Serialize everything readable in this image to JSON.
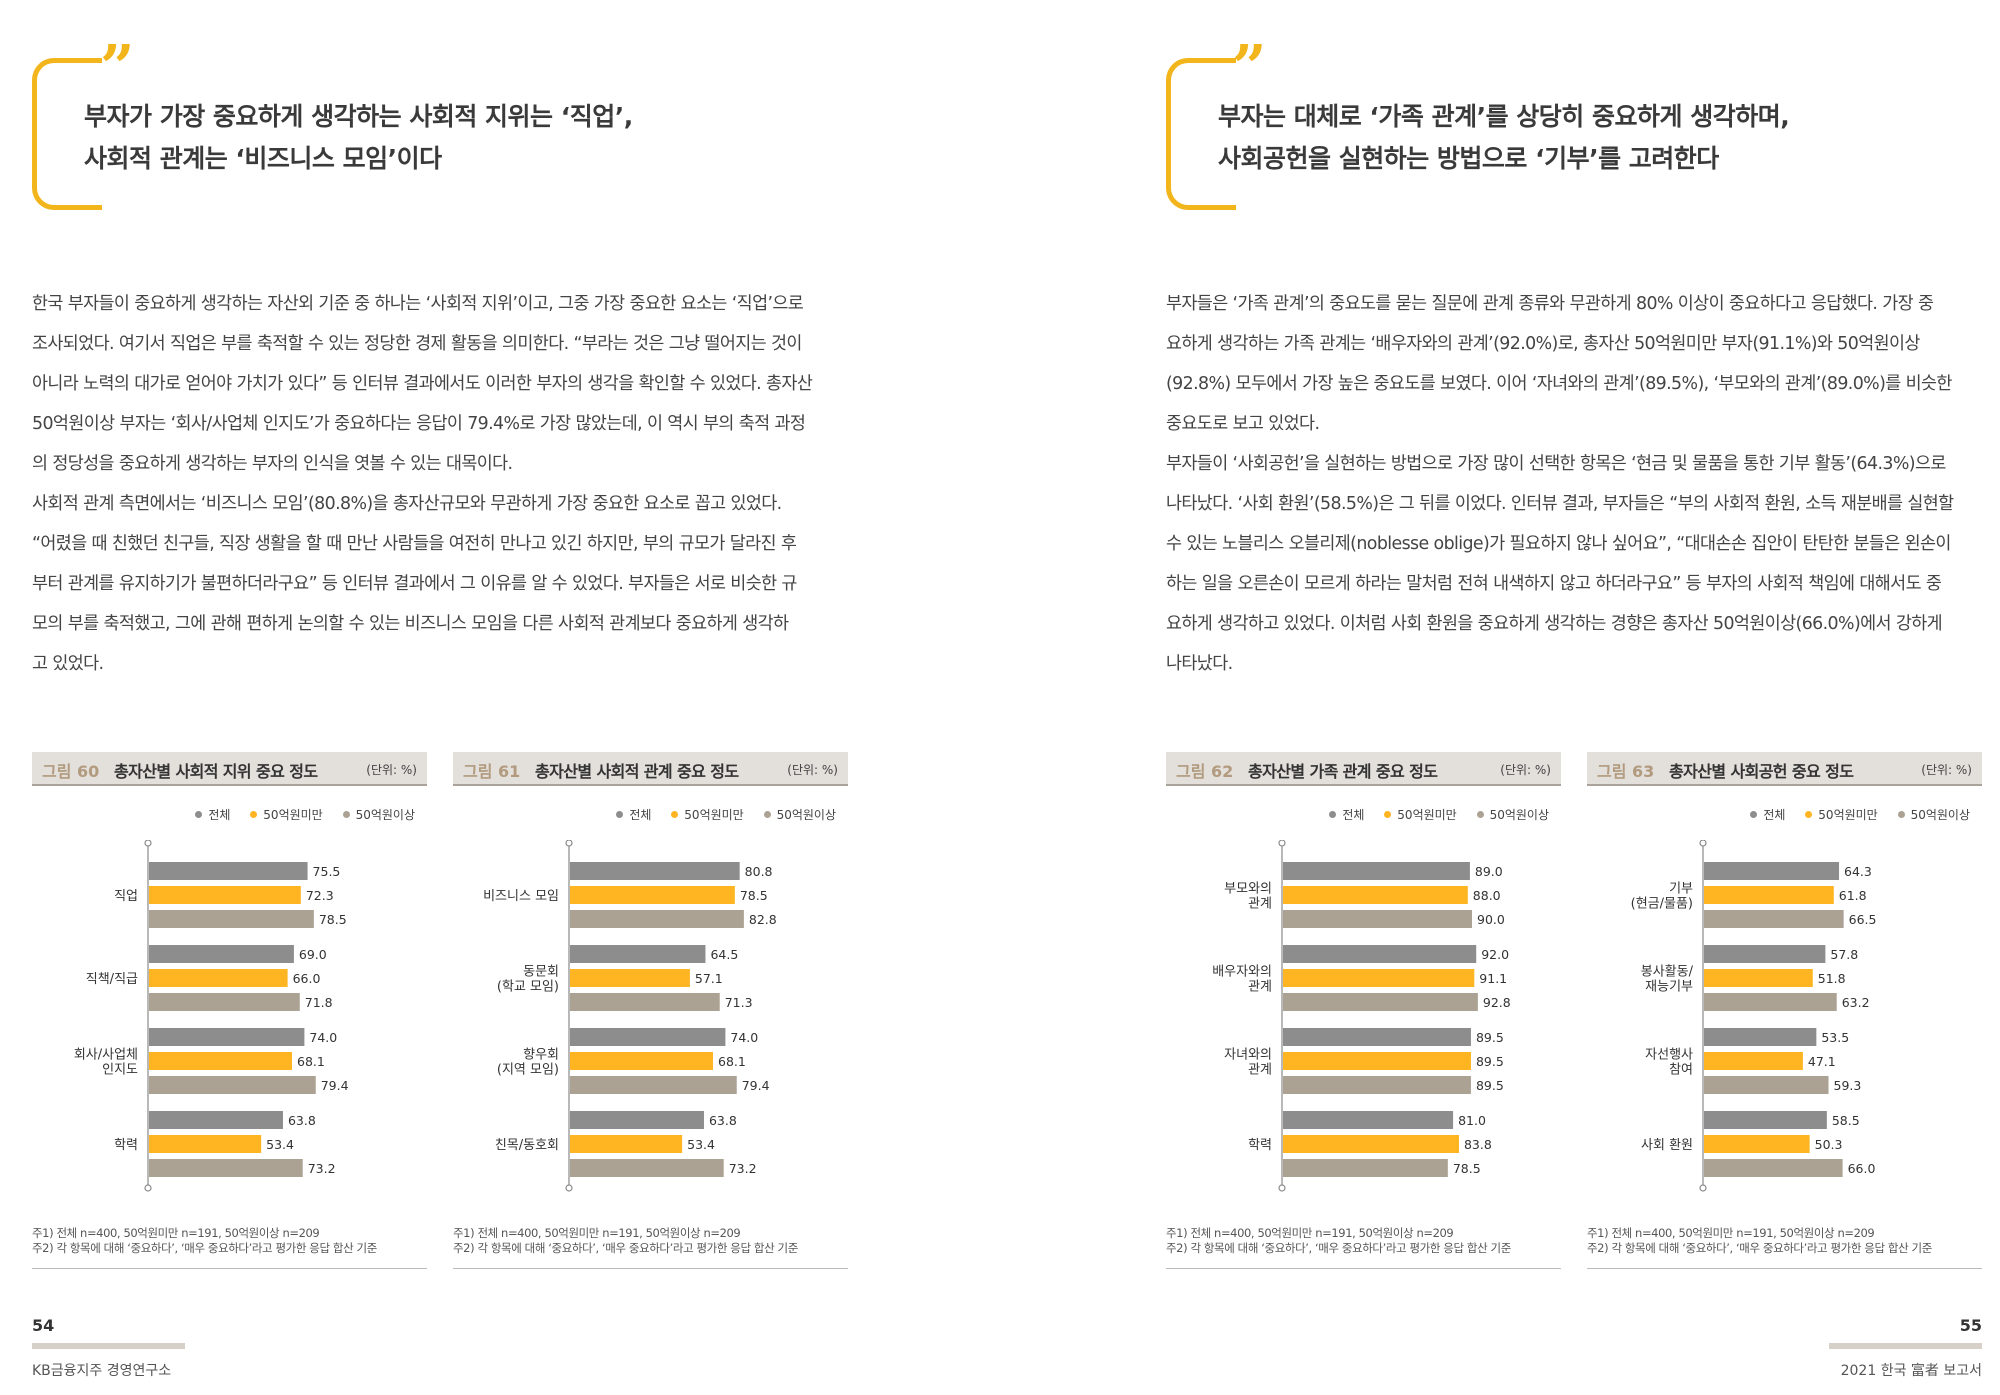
{
  "colors": {
    "total": "#8d8d8d",
    "under": "#ffb522",
    "over": "#aca294",
    "accent": "#f2b51c"
  },
  "left_page": {
    "quote_mark": "”",
    "headline": [
      "부자가 가장 중요하게 생각하는 사회적 지위는 ‘직업’,",
      "사회적 관계는 ‘비즈니스 모임’이다"
    ],
    "body_lines": [
      "한국 부자들이 중요하게 생각하는 자산외 기준 중 하나는 ‘사회적 지위’이고, 그중 가장 중요한 요소는 ‘직업’으로",
      "조사되었다. 여기서 직업은 부를 축적할 수 있는 정당한 경제 활동을 의미한다. “부라는 것은 그냥 떨어지는 것이",
      "아니라 노력의 대가로 얻어야 가치가 있다” 등 인터뷰 결과에서도 이러한 부자의 생각을 확인할 수 있었다. 총자산",
      "50억원이상 부자는 ‘회사/사업체 인지도’가 중요하다는 응답이 79.4%로 가장 많았는데, 이 역시 부의 축적 과정",
      "의 정당성을 중요하게 생각하는 부자의 인식을 엿볼 수 있는 대목이다.",
      "사회적 관계 측면에서는 ‘비즈니스 모임’(80.8%)을 총자산규모와 무관하게 가장 중요한 요소로 꼽고 있었다.",
      "“어렸을 때 친했던 친구들, 직장 생활을 할 때 만난 사람들을 여전히 만나고 있긴 하지만, 부의 규모가 달라진 후",
      "부터 관계를 유지하기가 불편하더라구요” 등 인터뷰 결과에서 그 이유를 알 수 있었다. 부자들은 서로 비슷한 규",
      "모의 부를 축적했고, 그에 관해 편하게 논의할 수 있는 비즈니스 모임을 다른 사회적 관계보다 중요하게 생각하",
      "고 있었다."
    ],
    "page_number": "54",
    "footer": "KB금융지주 경영연구소"
  },
  "right_page": {
    "quote_mark": "”",
    "headline": [
      "부자는 대체로 ‘가족 관계’를 상당히 중요하게 생각하며,",
      "사회공헌을 실현하는 방법으로 ‘기부’를 고려한다"
    ],
    "body_lines": [
      "부자들은 ‘가족 관계’의 중요도를 묻는 질문에 관계 종류와 무관하게 80% 이상이 중요하다고 응답했다. 가장 중",
      "요하게 생각하는 가족 관계는 ‘배우자와의 관계’(92.0%)로, 총자산 50억원미만 부자(91.1%)와 50억원이상",
      "(92.8%) 모두에서 가장 높은 중요도를 보였다. 이어 ‘자녀와의 관계’(89.5%), ‘부모와의 관계’(89.0%)를 비슷한",
      "중요도로 보고 있었다.",
      "부자들이 ‘사회공헌’을 실현하는 방법으로 가장 많이 선택한 항목은 ‘현금 및 물품을 통한 기부 활동’(64.3%)으로",
      "나타났다. ‘사회 환원’(58.5%)은 그 뒤를 이었다. 인터뷰 결과, 부자들은 “부의 사회적 환원, 소득 재분배를 실현할",
      "수 있는 노블리스 오블리제(noblesse oblige)가 필요하지 않나 싶어요”, “대대손손 집안이 탄탄한 분들은 왼손이",
      "하는 일을 오른손이 모르게 하라는 말처럼 전혀 내색하지 않고 하더라구요” 등 부자의 사회적 책임에 대해서도 중",
      "요하게 생각하고 있었다. 이처럼 사회 환원을 중요하게 생각하는 경향은 총자산 50억원이상(66.0%)에서 강하게",
      "나타났다."
    ],
    "page_number": "55",
    "footer": "2021 한국 富者 보고서"
  },
  "figures": [
    {
      "num": "그림 60",
      "title": "총자산별 사회적 지위 중요 정도",
      "unit": "(단위: %)",
      "legend": [
        "전체",
        "50억원미만",
        "50억원이상"
      ],
      "notes": [
        "주1) 전체 n=400, 50억원미만 n=191, 50억원이상 n=209",
        "주2) 각 항목에 대해 ‘중요하다’, ‘매우 중요하다’라고 평가한 응답 합산 기준"
      ],
      "chart_data": {
        "type": "bar",
        "orientation": "horizontal",
        "xlim": [
          0,
          100
        ],
        "categories": [
          [
            "직업"
          ],
          [
            "직책/직급"
          ],
          [
            "회사/사업체",
            "인지도"
          ],
          [
            "학력"
          ]
        ],
        "series": [
          {
            "name": "전체",
            "values": [
              75.5,
              69.0,
              74.0,
              63.8
            ]
          },
          {
            "name": "50억원미만",
            "values": [
              72.3,
              66.0,
              68.1,
              53.4
            ]
          },
          {
            "name": "50억원이상",
            "values": [
              78.5,
              71.8,
              79.4,
              73.2
            ]
          }
        ]
      }
    },
    {
      "num": "그림 61",
      "title": "총자산별 사회적 관계 중요 정도",
      "unit": "(단위: %)",
      "legend": [
        "전체",
        "50억원미만",
        "50억원이상"
      ],
      "notes": [
        "주1) 전체 n=400, 50억원미만 n=191, 50억원이상 n=209",
        "주2) 각 항목에 대해 ‘중요하다’, ‘매우 중요하다’라고 평가한 응답 합산 기준"
      ],
      "chart_data": {
        "type": "bar",
        "orientation": "horizontal",
        "xlim": [
          0,
          100
        ],
        "categories": [
          [
            "비즈니스 모임"
          ],
          [
            "동문회",
            "(학교 모임)"
          ],
          [
            "향우회",
            "(지역 모임)"
          ],
          [
            "친목/동호회"
          ]
        ],
        "series": [
          {
            "name": "전체",
            "values": [
              80.8,
              64.5,
              74.0,
              63.8
            ]
          },
          {
            "name": "50억원미만",
            "values": [
              78.5,
              57.1,
              68.1,
              53.4
            ]
          },
          {
            "name": "50억원이상",
            "values": [
              82.8,
              71.3,
              79.4,
              73.2
            ]
          }
        ]
      }
    },
    {
      "num": "그림 62",
      "title": "총자산별 가족 관계 중요 정도",
      "unit": "(단위: %)",
      "legend": [
        "전체",
        "50억원미만",
        "50억원이상"
      ],
      "notes": [
        "주1) 전체 n=400, 50억원미만 n=191, 50억원이상 n=209",
        "주2) 각 항목에 대해 ‘중요하다’, ‘매우 중요하다’라고 평가한 응답 합산 기준"
      ],
      "chart_data": {
        "type": "bar",
        "orientation": "horizontal",
        "xlim": [
          0,
          100
        ],
        "categories": [
          [
            "부모와의",
            "관계"
          ],
          [
            "배우자와의",
            "관계"
          ],
          [
            "자녀와의",
            "관계"
          ],
          [
            "학력"
          ]
        ],
        "series": [
          {
            "name": "전체",
            "values": [
              89.0,
              92.0,
              89.5,
              81.0
            ]
          },
          {
            "name": "50억원미만",
            "values": [
              88.0,
              91.1,
              89.5,
              83.8
            ]
          },
          {
            "name": "50억원이상",
            "values": [
              90.0,
              92.8,
              89.5,
              78.5
            ]
          }
        ]
      }
    },
    {
      "num": "그림 63",
      "title": "총자산별 사회공헌 중요 정도",
      "unit": "(단위: %)",
      "legend": [
        "전체",
        "50억원미만",
        "50억원이상"
      ],
      "notes": [
        "주1) 전체 n=400, 50억원미만 n=191, 50억원이상 n=209",
        "주2) 각 항목에 대해 ‘중요하다’, ‘매우 중요하다’라고 평가한 응답 합산 기준"
      ],
      "chart_data": {
        "type": "bar",
        "orientation": "horizontal",
        "xlim": [
          0,
          100
        ],
        "categories": [
          [
            "기부",
            "(현금/물품)"
          ],
          [
            "봉사활동/",
            "재능기부"
          ],
          [
            "자선행사",
            "참여"
          ],
          [
            "사회 환원"
          ]
        ],
        "series": [
          {
            "name": "전체",
            "values": [
              64.3,
              57.8,
              53.5,
              58.5
            ]
          },
          {
            "name": "50억원미만",
            "values": [
              61.8,
              51.8,
              47.1,
              50.3
            ]
          },
          {
            "name": "50억원이상",
            "values": [
              66.5,
              63.2,
              59.3,
              66.0
            ]
          }
        ]
      }
    }
  ]
}
